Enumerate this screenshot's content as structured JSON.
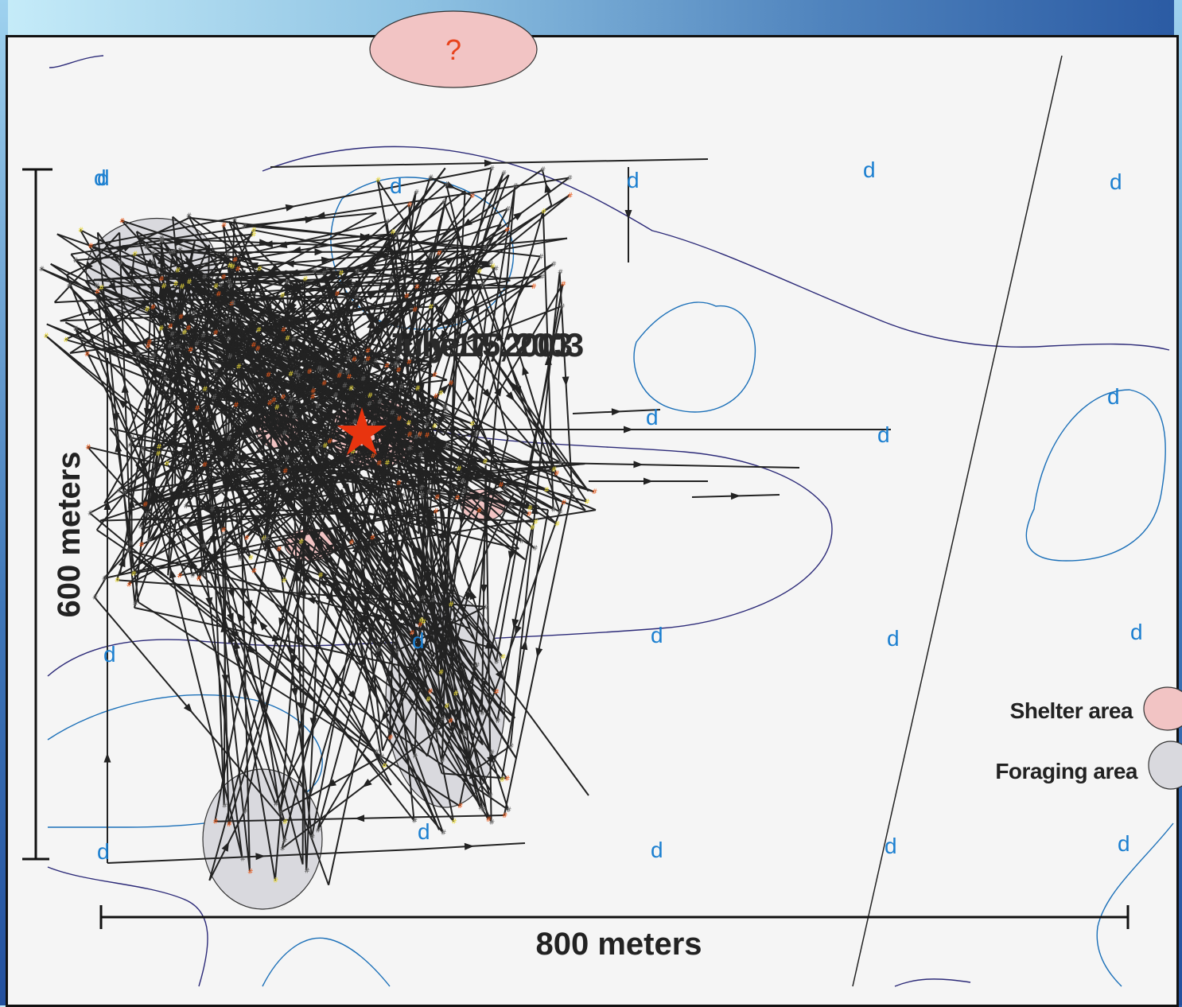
{
  "map": {
    "question_mark": "?",
    "date_label_1": "June 15, 2003",
    "date_label_2": "July 17, 2003",
    "scale_vertical": "600 meters",
    "scale_horizontal": "800 meters",
    "location_marker": "d",
    "legend": [
      {
        "label": "Shelter area",
        "color": "#f2c4c4"
      },
      {
        "label": "Foraging area",
        "color": "#d9d9de"
      }
    ],
    "colors": {
      "contour": "#1a6fb8",
      "boundary": "#2c2a78",
      "track": "#222222",
      "star": "#e8340f",
      "fix_orange": "#e85a1c",
      "fix_yellow": "#e8d83a"
    }
  }
}
